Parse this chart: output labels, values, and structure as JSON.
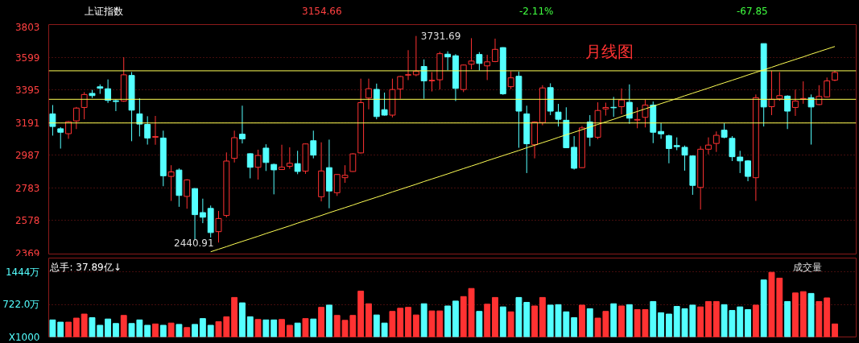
{
  "chart_data": [
    {
      "type": "candlestick",
      "title": "上证指数",
      "annotations": [
        "3154.66",
        "-2.11%",
        "-67.85",
        "月线图",
        "3731.69",
        {
          "text": "2440.91",
          "y": 2440.91
        }
      ],
      "categories": [
        null,
        null,
        null,
        null,
        null,
        null,
        null,
        null,
        null,
        null,
        null,
        null,
        null,
        null,
        null,
        null,
        null,
        null,
        null,
        null,
        null,
        null,
        null,
        null,
        null,
        null,
        null,
        null,
        null,
        null,
        null,
        null,
        null,
        null,
        null,
        null,
        null,
        null,
        null,
        null,
        null,
        null,
        null,
        null,
        null,
        null,
        null,
        null,
        null,
        null,
        null,
        null,
        null,
        null,
        null,
        null,
        null,
        null,
        null,
        null,
        null,
        null,
        null,
        null,
        null,
        null,
        null,
        null,
        null,
        null,
        null,
        null,
        null,
        null,
        null,
        null,
        null,
        null,
        null,
        null,
        null,
        null,
        null,
        null,
        null,
        null,
        null,
        null,
        null,
        null,
        null,
        null,
        null,
        null,
        null,
        null,
        null,
        null,
        null,
        null
      ],
      "ohlc": [
        [
          3245,
          3300,
          3109,
          3166
        ],
        [
          3152,
          3162,
          3028,
          3130
        ],
        [
          3121,
          3200,
          3089,
          3196
        ],
        [
          3201,
          3288,
          3150,
          3281
        ],
        [
          3285,
          3381,
          3211,
          3366
        ],
        [
          3373,
          3395,
          3344,
          3359
        ],
        [
          3414,
          3429,
          3370,
          3405
        ],
        [
          3402,
          3460,
          3313,
          3329
        ],
        [
          3327,
          3334,
          3262,
          3322
        ],
        [
          3325,
          3599,
          3320,
          3489
        ],
        [
          3485,
          3506,
          3074,
          3268
        ],
        [
          3245,
          3342,
          3104,
          3181
        ],
        [
          3179,
          3230,
          3053,
          3094
        ],
        [
          3099,
          3232,
          3052,
          3103
        ],
        [
          3094,
          3140,
          2793,
          2858
        ],
        [
          2854,
          2924,
          2701,
          2882
        ],
        [
          2894,
          2904,
          2664,
          2735
        ],
        [
          2729,
          2837,
          2652,
          2832
        ],
        [
          2778,
          2781,
          2460,
          2615
        ],
        [
          2628,
          2715,
          2562,
          2599
        ],
        [
          2654,
          2672,
          2472,
          2503
        ],
        [
          2509,
          2638,
          2440.91,
          2591
        ],
        [
          2610,
          3004,
          2598,
          2950
        ],
        [
          2967,
          3140,
          2941,
          3096
        ],
        [
          3118,
          3296,
          3060,
          3089
        ],
        [
          2996,
          2999,
          2842,
          2911
        ],
        [
          2911,
          3021,
          2834,
          2985
        ],
        [
          3031,
          3055,
          2888,
          2941
        ],
        [
          2929,
          2934,
          2742,
          2895
        ],
        [
          2897,
          3052,
          2895,
          2912
        ],
        [
          2917,
          3036,
          2902,
          2936
        ],
        [
          2934,
          3014,
          2868,
          2885
        ],
        [
          2887,
          3060,
          2870,
          3057
        ],
        [
          3077,
          3140,
          2967,
          2987
        ],
        [
          2727,
          3067,
          2698,
          2888
        ],
        [
          2909,
          3084,
          2655,
          2763
        ],
        [
          2752,
          2869,
          2732,
          2866
        ],
        [
          2846,
          2924,
          2814,
          2861
        ],
        [
          2885,
          2999,
          2883,
          2995
        ],
        [
          3001,
          3465,
          2997,
          3315
        ],
        [
          3344,
          3465,
          3273,
          3402
        ],
        [
          3398,
          3434,
          3211,
          3228
        ],
        [
          3271,
          3378,
          3234,
          3237
        ],
        [
          3237,
          3465,
          3223,
          3397
        ],
        [
          3400,
          3482,
          3339,
          3478
        ],
        [
          3487,
          3643,
          3456,
          3490
        ],
        [
          3489,
          3731.69,
          3480,
          3511
        ],
        [
          3541,
          3585,
          3339,
          3451
        ],
        [
          3451,
          3506,
          3385,
          3455
        ],
        [
          3458,
          3633,
          3397,
          3621
        ],
        [
          3618,
          3636,
          3517,
          3601
        ],
        [
          3608,
          3618,
          3325,
          3404
        ],
        [
          3397,
          3553,
          3381,
          3550
        ],
        [
          3555,
          3718,
          3523,
          3575
        ],
        [
          3616,
          3631,
          3516,
          3560
        ],
        [
          3545,
          3614,
          3456,
          3570
        ],
        [
          3572,
          3715,
          3568,
          3648
        ],
        [
          3659,
          3661,
          3364,
          3370
        ],
        [
          3415,
          3511,
          3400,
          3470
        ],
        [
          3480,
          3509,
          3033,
          3262
        ],
        [
          3245,
          3296,
          2875,
          3058
        ],
        [
          3052,
          3198,
          2967,
          3194
        ],
        [
          3191,
          3424,
          3174,
          3407
        ],
        [
          3409,
          3436,
          3237,
          3262
        ],
        [
          3256,
          3307,
          3166,
          3211
        ],
        [
          3205,
          3286,
          3031,
          3033
        ],
        [
          3036,
          3106,
          2897,
          2905
        ],
        [
          2909,
          3169,
          2907,
          3157
        ],
        [
          3194,
          3237,
          3043,
          3099
        ],
        [
          3099,
          3317,
          3087,
          3266
        ],
        [
          3276,
          3315,
          3234,
          3285
        ],
        [
          3286,
          3351,
          3227,
          3283
        ],
        [
          3290,
          3404,
          3242,
          3332
        ],
        [
          3317,
          3429,
          3183,
          3218
        ],
        [
          3206,
          3286,
          3155,
          3210
        ],
        [
          3223,
          3334,
          3160,
          3300
        ],
        [
          3300,
          3322,
          3062,
          3130
        ],
        [
          3135,
          3188,
          3089,
          3120
        ],
        [
          3108,
          3115,
          2936,
          3028
        ],
        [
          3047,
          3098,
          3018,
          3040
        ],
        [
          3036,
          3047,
          2890,
          2987
        ],
        [
          2982,
          2985,
          2739,
          2798
        ],
        [
          2785,
          3043,
          2647,
          3024
        ],
        [
          3024,
          3098,
          2992,
          3050
        ],
        [
          3060,
          3135,
          3007,
          3111
        ],
        [
          3143,
          3186,
          3092,
          3099
        ],
        [
          3092,
          3106,
          2950,
          2977
        ],
        [
          2975,
          3014,
          2875,
          2951
        ],
        [
          2951,
          2956,
          2824,
          2854
        ],
        [
          2846,
          3366,
          2701,
          3346
        ],
        [
          3684,
          3684,
          3166,
          3288
        ],
        [
          3290,
          3514,
          3237,
          3336
        ],
        [
          3339,
          3506,
          3327,
          3359
        ],
        [
          3356,
          3361,
          3150,
          3262
        ],
        [
          3285,
          3397,
          3232,
          3325
        ],
        [
          3337,
          3448,
          3308,
          3341
        ],
        [
          3346,
          3366,
          3053,
          3288
        ],
        [
          3303,
          3424,
          3300,
          3354
        ],
        [
          3351,
          3472,
          3347,
          3451
        ],
        [
          3456,
          3514,
          3449,
          3504
        ]
      ],
      "colors": [
        "#54ffff",
        "#54ffff",
        "#ff3232",
        "#ff3232",
        "#ff3232",
        "#54ffff",
        "#54ffff",
        "#54ffff",
        "#54ffff",
        "#ff3232",
        "#54ffff",
        "#54ffff",
        "#54ffff",
        "#ff3232",
        "#54ffff",
        "#ff3232",
        "#54ffff",
        "#ff3232",
        "#54ffff",
        "#54ffff",
        "#54ffff",
        "#ff3232",
        "#ff3232",
        "#ff3232",
        "#54ffff",
        "#54ffff",
        "#ff3232",
        "#54ffff",
        "#54ffff",
        "#ff3232",
        "#ff3232",
        "#54ffff",
        "#ff3232",
        "#54ffff",
        "#ff3232",
        "#54ffff",
        "#ff3232",
        "#ff3232",
        "#ff3232",
        "#ff3232",
        "#ff3232",
        "#54ffff",
        "#54ffff",
        "#ff3232",
        "#ff3232",
        "#ff3232",
        "#ff3232",
        "#54ffff",
        "#ff3232",
        "#ff3232",
        "#54ffff",
        "#54ffff",
        "#ff3232",
        "#ff3232",
        "#54ffff",
        "#ff3232",
        "#ff3232",
        "#54ffff",
        "#ff3232",
        "#54ffff",
        "#54ffff",
        "#ff3232",
        "#ff3232",
        "#54ffff",
        "#54ffff",
        "#54ffff",
        "#54ffff",
        "#ff3232",
        "#54ffff",
        "#ff3232",
        "#ff3232",
        "#54ffff",
        "#ff3232",
        "#54ffff",
        "#ff3232",
        "#ff3232",
        "#54ffff",
        "#54ffff",
        "#54ffff",
        "#54ffff",
        "#54ffff",
        "#54ffff",
        "#ff3232",
        "#ff3232",
        "#ff3232",
        "#54ffff",
        "#54ffff",
        "#54ffff",
        "#54ffff",
        "#ff3232",
        "#54ffff",
        "#ff3232",
        "#ff3232",
        "#54ffff",
        "#ff3232",
        "#ff3232",
        "#54ffff",
        "#ff3232",
        "#ff3232",
        "#ff3232"
      ],
      "series": [
        {
          "type": "line",
          "color": "#ffff55",
          "values": [
            null,
            null,
            null,
            null,
            null,
            null,
            null,
            null,
            null,
            null,
            null,
            null,
            null,
            null,
            null,
            null,
            null,
            null,
            null,
            null,
            2383,
            2399,
            2415,
            2432,
            2448,
            2464,
            2480,
            2497,
            2513,
            2529,
            2545,
            2562,
            2578,
            2594,
            2610,
            2627,
            2643,
            2659,
            2675,
            2692,
            2708,
            2724,
            2740,
            2757,
            2773,
            2789,
            2805,
            2822,
            2838,
            2854,
            2870,
            2887,
            2903,
            2919,
            2935,
            2952,
            2968,
            2984,
            3000,
            3016,
            3033,
            3049,
            3065,
            3081,
            3098,
            3114,
            3130,
            3146,
            3163,
            3179,
            3195,
            3211,
            3228,
            3244,
            3260,
            3276,
            3293,
            3309,
            3325,
            3341,
            3358,
            3374,
            3390,
            3406,
            3423,
            3439,
            3455,
            3471,
            3488,
            3504,
            3520,
            3536,
            3553,
            3569,
            3585,
            3601,
            3618,
            3634,
            3650,
            3666
          ]
        }
      ],
      "ref_lines": [
        {
          "axis": "y",
          "value": 3514,
          "color": "#ffff55"
        },
        {
          "axis": "y",
          "value": 3336,
          "color": "#ffff55"
        },
        {
          "axis": "y",
          "value": 3188,
          "color": "#ffff55"
        }
      ],
      "ylim": [
        2369,
        3803
      ],
      "yticks": [
        2369,
        2578,
        2783,
        2987,
        3191,
        3395,
        3599,
        3803
      ],
      "grid": "y",
      "tick_labels": "y"
    },
    {
      "type": "bar",
      "annotations": [
        "总手: 37.89亿↓",
        "成交量"
      ],
      "categories": [
        null,
        null,
        null,
        null,
        null,
        null,
        null,
        null,
        null,
        null,
        null,
        null,
        null,
        null,
        null,
        null,
        null,
        null,
        null,
        null,
        null,
        null,
        null,
        null,
        null,
        null,
        null,
        null,
        null,
        null,
        null,
        null,
        null,
        null,
        null,
        null,
        null,
        null,
        null,
        null,
        null,
        null,
        null,
        null,
        null,
        null,
        null,
        null,
        null,
        null,
        null,
        null,
        null,
        null,
        null,
        null,
        null,
        null,
        null,
        null,
        null,
        null,
        null,
        null,
        null,
        null,
        null,
        null,
        null,
        null,
        null,
        null,
        null,
        null,
        null,
        null,
        null,
        null,
        null,
        null,
        null,
        null,
        null,
        null,
        null,
        null,
        null,
        null,
        null,
        null,
        null,
        null,
        null,
        null,
        null,
        null,
        null,
        null,
        null,
        null
      ],
      "values": [
        380,
        330,
        330,
        420,
        510,
        430,
        260,
        400,
        300,
        480,
        300,
        380,
        260,
        290,
        260,
        310,
        280,
        210,
        280,
        410,
        260,
        340,
        450,
        880,
        760,
        450,
        390,
        380,
        380,
        390,
        260,
        310,
        410,
        400,
        660,
        710,
        480,
        370,
        480,
        1020,
        740,
        490,
        310,
        570,
        640,
        660,
        490,
        740,
        580,
        580,
        690,
        800,
        900,
        1080,
        570,
        730,
        880,
        670,
        560,
        880,
        770,
        690,
        880,
        710,
        720,
        560,
        430,
        710,
        630,
        420,
        570,
        740,
        690,
        720,
        610,
        610,
        790,
        540,
        510,
        680,
        630,
        710,
        670,
        790,
        790,
        720,
        590,
        670,
        610,
        710,
        1270,
        1440,
        1310,
        790,
        980,
        1010,
        970,
        790,
        870,
        290
      ],
      "colors": [
        "#54ffff",
        "#54ffff",
        "#ff3232",
        "#ff3232",
        "#ff3232",
        "#54ffff",
        "#54ffff",
        "#54ffff",
        "#54ffff",
        "#ff3232",
        "#54ffff",
        "#54ffff",
        "#54ffff",
        "#ff3232",
        "#54ffff",
        "#ff3232",
        "#54ffff",
        "#ff3232",
        "#54ffff",
        "#54ffff",
        "#54ffff",
        "#ff3232",
        "#ff3232",
        "#ff3232",
        "#54ffff",
        "#54ffff",
        "#ff3232",
        "#54ffff",
        "#54ffff",
        "#ff3232",
        "#ff3232",
        "#54ffff",
        "#ff3232",
        "#54ffff",
        "#ff3232",
        "#54ffff",
        "#ff3232",
        "#ff3232",
        "#ff3232",
        "#ff3232",
        "#ff3232",
        "#54ffff",
        "#54ffff",
        "#ff3232",
        "#ff3232",
        "#ff3232",
        "#ff3232",
        "#54ffff",
        "#ff3232",
        "#ff3232",
        "#54ffff",
        "#54ffff",
        "#ff3232",
        "#ff3232",
        "#54ffff",
        "#ff3232",
        "#ff3232",
        "#54ffff",
        "#ff3232",
        "#54ffff",
        "#54ffff",
        "#ff3232",
        "#ff3232",
        "#54ffff",
        "#54ffff",
        "#54ffff",
        "#54ffff",
        "#ff3232",
        "#54ffff",
        "#ff3232",
        "#ff3232",
        "#54ffff",
        "#ff3232",
        "#54ffff",
        "#ff3232",
        "#ff3232",
        "#54ffff",
        "#54ffff",
        "#54ffff",
        "#54ffff",
        "#54ffff",
        "#54ffff",
        "#ff3232",
        "#ff3232",
        "#ff3232",
        "#54ffff",
        "#54ffff",
        "#54ffff",
        "#54ffff",
        "#ff3232",
        "#54ffff",
        "#ff3232",
        "#ff3232",
        "#54ffff",
        "#ff3232",
        "#ff3232",
        "#54ffff",
        "#ff3232",
        "#ff3232",
        "#ff3232"
      ],
      "ylim": [
        0,
        1757
      ],
      "yticks": [
        {
          "value": 0,
          "label": "X1000"
        },
        {
          "value": 722,
          "label": "722.0万"
        },
        {
          "value": 1444,
          "label": "1444万"
        }
      ],
      "grid": "y",
      "tick_labels": "y"
    }
  ]
}
